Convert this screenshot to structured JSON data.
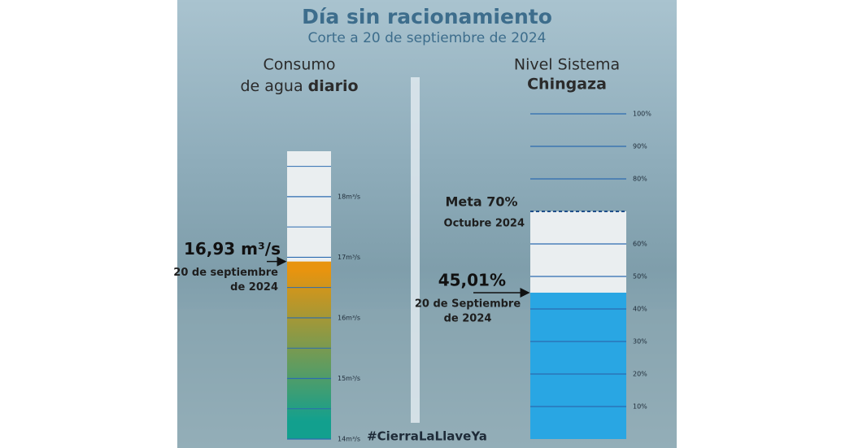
{
  "header": {
    "title": "Día sin racionamiento",
    "subtitle": "Corte a 20 de septiembre de 2024"
  },
  "footer": "#CierraLaLlaveYa",
  "chart_data": [
    {
      "type": "bar",
      "title": {
        "line1": "Consumo",
        "line2": "de agua",
        "emphasis": "diario"
      },
      "values": [
        16.93
      ],
      "value_labels": [
        "16,93 m³/s"
      ],
      "annotation": [
        "20 de septiembre",
        "de 2024"
      ],
      "colors": [
        "#12a08e",
        "#e8940e"
      ],
      "ylim": [
        14,
        18.75
      ],
      "yticks": [
        {
          "value": 14,
          "label": "14m³/s"
        },
        {
          "value": 15,
          "label": "15m³/s"
        },
        {
          "value": 16,
          "label": "16m³/s"
        },
        {
          "value": 17,
          "label": "17m³/s"
        },
        {
          "value": 18,
          "label": "18m³/s"
        }
      ],
      "minor_yticks": [
        14.5,
        15.5,
        16.5,
        17.5,
        18.5
      ]
    },
    {
      "type": "bar",
      "title": {
        "line1": "Nivel Sistema",
        "emphasis": "Chingaza"
      },
      "values": [
        45.01
      ],
      "value_labels": [
        "45,01%"
      ],
      "annotation": [
        "20 de Septiembre",
        "de 2024"
      ],
      "color": "#29a6e3",
      "target": {
        "value": 70,
        "label": "Meta 70%",
        "sublabel": "Octubre 2024"
      },
      "ylim": [
        0,
        100
      ],
      "yticks": [
        {
          "value": 10,
          "label": "10%"
        },
        {
          "value": 20,
          "label": "20%"
        },
        {
          "value": 30,
          "label": "30%"
        },
        {
          "value": 40,
          "label": "40%"
        },
        {
          "value": 50,
          "label": "50%"
        },
        {
          "value": 60,
          "label": "60%"
        },
        {
          "value": 80,
          "label": "80%"
        },
        {
          "value": 90,
          "label": "90%"
        },
        {
          "value": 100,
          "label": "100%"
        }
      ]
    }
  ]
}
